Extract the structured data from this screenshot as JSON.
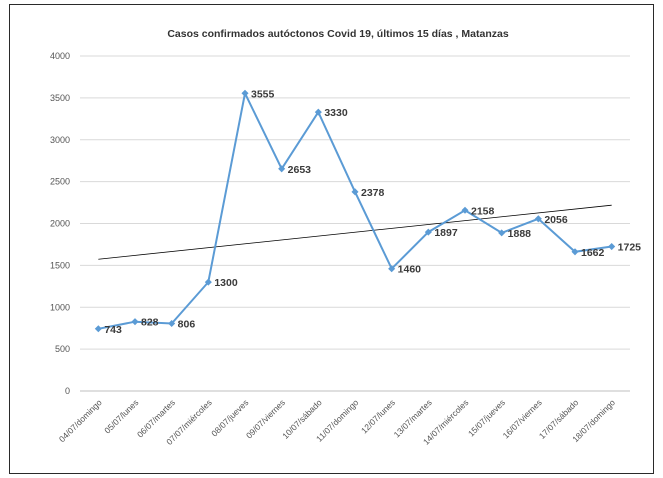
{
  "chart_data": {
    "type": "line",
    "title": "Casos confirmados autóctonos Covid 19, últimos 15 días , Matanzas",
    "xlabel": "",
    "ylabel": "",
    "ylim": [
      0,
      4000
    ],
    "yticks": [
      "0",
      "500",
      "1000",
      "1500",
      "2000",
      "2500",
      "3000",
      "3500",
      "4000"
    ],
    "grid": true,
    "legend": "none",
    "categories": [
      "04/07/domingo",
      "05/07/lunes",
      "06/07/martes",
      "07/07/miércoles",
      "08/07/jueves",
      "09/07/viernes",
      "10/07/sábado",
      "11/07/domingo",
      "12/07/lunes",
      "13/07/martes",
      "14/07/miércoles",
      "15/07/jueves",
      "16/07/viernes",
      "17/07/sábado",
      "18/07/domingo"
    ],
    "series": [
      {
        "values": [
          743,
          828,
          806,
          1300,
          3555,
          2653,
          3330,
          2378,
          1460,
          1897,
          2158,
          1888,
          2056,
          1662,
          1725
        ],
        "labels": [
          "743",
          "828",
          "806",
          "1300",
          "3555",
          "2653",
          "3330",
          "2378",
          "1460",
          "1897",
          "2158",
          "1888",
          "2056",
          "1662",
          "1725"
        ],
        "color": "#5b9bd5"
      }
    ],
    "trendline": {
      "type": "linear",
      "color": "#000000"
    }
  }
}
